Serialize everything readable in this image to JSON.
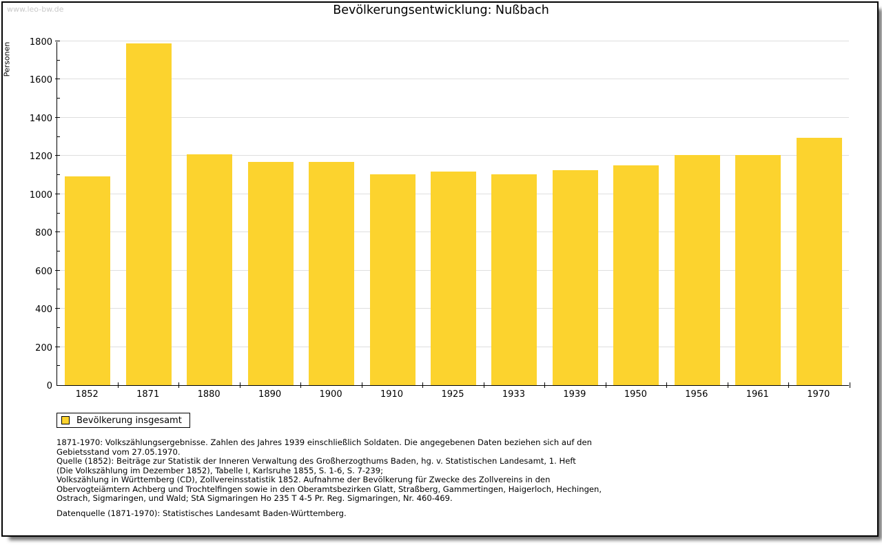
{
  "watermark": "www.leo-bw.de",
  "title": "Bevölkerungsentwicklung: Nußbach",
  "chart_data": {
    "type": "bar",
    "title": "Bevölkerungsentwicklung: Nußbach",
    "xlabel": "",
    "ylabel": "Personen",
    "categories": [
      "1852",
      "1871",
      "1880",
      "1890",
      "1900",
      "1910",
      "1925",
      "1933",
      "1939",
      "1950",
      "1956",
      "1961",
      "1970"
    ],
    "values": [
      1093,
      1788,
      1209,
      1168,
      1168,
      1104,
      1118,
      1104,
      1126,
      1151,
      1204,
      1204,
      1294
    ],
    "ylim": [
      0,
      1800
    ],
    "ytick_step": 200,
    "ytick_minor_step": 100,
    "grid": true,
    "bar_color": "#fcd32e",
    "legend_label": "Bevölkerung insgesamt",
    "legend_position": "bottom-left"
  },
  "footnote": {
    "lines": [
      "1871-1970: Volkszählungsergebnisse. Zahlen des Jahres 1939 einschließlich Soldaten. Die angegebenen Daten beziehen sich auf den",
      "Gebietsstand vom 27.05.1970.",
      "Quelle (1852): Beiträge zur Statistik der Inneren Verwaltung des Großherzogthums Baden, hg. v. Statistischen Landesamt, 1. Heft",
      "(Die Volkszählung im Dezember 1852), Tabelle I, Karlsruhe 1855, S. 1-6, S. 7-239;",
      "Volkszählung in Württemberg (CD), Zollvereinsstatistik 1852. Aufnahme der Bevölkerung für Zwecke des Zollvereins in den",
      "Obervogteiämtern Achberg und Trochtelfingen sowie in den Oberamtsbezirken Glatt, Straßberg, Gammertingen, Haigerloch, Hechingen,",
      "Ostrach, Sigmaringen, und Wald; StA Sigmaringen Ho 235 T 4-5 Pr. Reg. Sigmaringen, Nr. 460-469."
    ],
    "datasource": "Datenquelle (1871-1970): Statistisches Landesamt Baden-Württemberg."
  }
}
